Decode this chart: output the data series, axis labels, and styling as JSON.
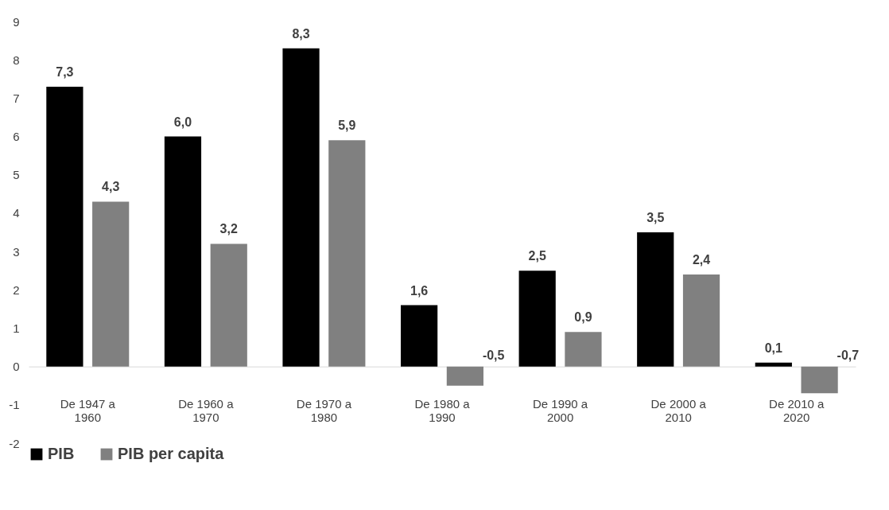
{
  "chart_data": {
    "type": "bar",
    "categories": [
      "De 1947 a 1960",
      "De 1960 a 1970",
      "De 1970 a 1980",
      "De 1980 a 1990",
      "De 1990 a 2000",
      "De 2000 a 2010",
      "De 2010 a 2020"
    ],
    "series": [
      {
        "name": "PIB",
        "color": "#000000",
        "values": [
          7.3,
          6.0,
          8.3,
          1.6,
          2.5,
          3.5,
          0.1
        ],
        "value_labels": [
          "7,3",
          "6,0",
          "8,3",
          "1,6",
          "2,5",
          "3,5",
          "0,1"
        ]
      },
      {
        "name": "PIB per capita",
        "color": "#808080",
        "values": [
          4.3,
          3.2,
          5.9,
          -0.5,
          0.9,
          2.4,
          -0.7
        ],
        "value_labels": [
          "4,3",
          "3,2",
          "5,9",
          "-0,5",
          "0,9",
          "2,4",
          "-0,7"
        ]
      }
    ],
    "ylim": [
      -2,
      9
    ],
    "yticks": [
      -2,
      -1,
      0,
      1,
      2,
      3,
      4,
      5,
      6,
      7,
      8,
      9
    ],
    "grid": false,
    "legend": "bottom"
  }
}
